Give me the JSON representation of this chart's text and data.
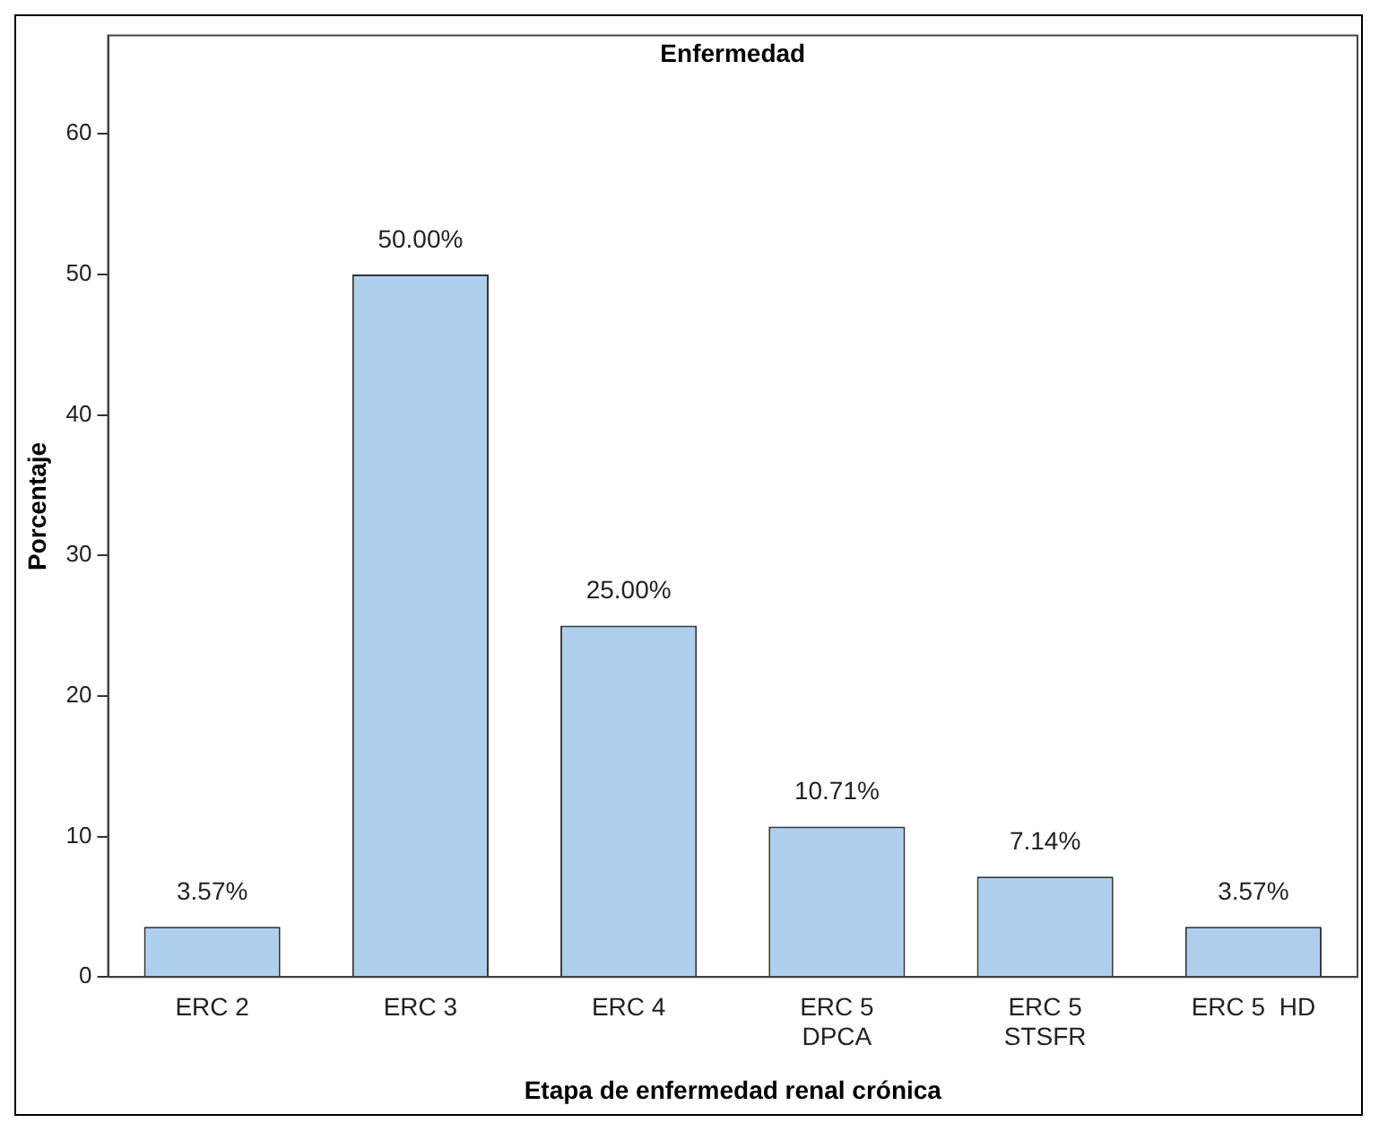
{
  "chart_data": {
    "type": "bar",
    "title": "Enfermedad",
    "xlabel": "Etapa de enfermedad renal crónica",
    "ylabel": "Porcentaje",
    "categories": [
      "ERC 2",
      "ERC 3",
      "ERC 4",
      "ERC 5\nDPCA",
      "ERC 5\nSTSFR",
      "ERC 5  HD"
    ],
    "values": [
      3.57,
      50,
      25,
      10.71,
      7.14,
      3.57
    ],
    "value_labels": [
      "3.57%",
      "50.00%",
      "25.00%",
      "10.71%",
      "7.14%",
      "3.57%"
    ],
    "color": "#aed0ee",
    "ylim": [
      0,
      67
    ],
    "yticks": [
      0,
      10,
      20,
      30,
      40,
      50,
      60
    ],
    "grid": false,
    "legend": false
  }
}
